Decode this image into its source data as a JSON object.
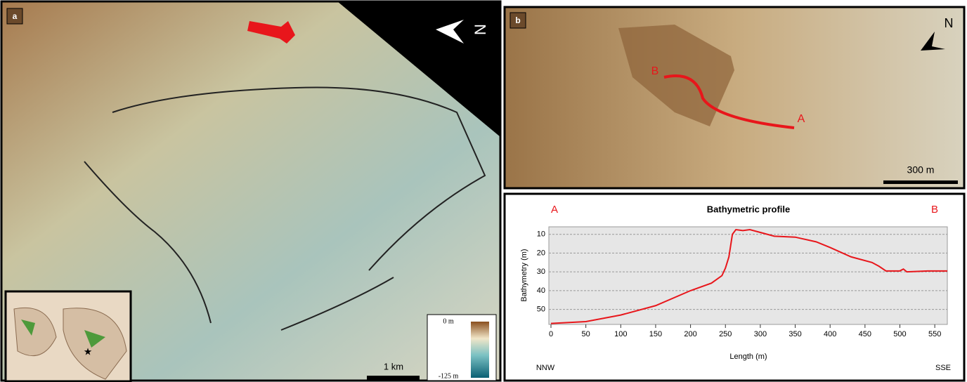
{
  "panels": {
    "a": {
      "label": "a",
      "north": "N",
      "scale": "1 km",
      "colorbar": {
        "top": "0 m",
        "bottom": "-125 m"
      }
    },
    "b": {
      "label": "b",
      "north": "N",
      "scale": "300 m",
      "profile_start": "A",
      "profile_end": "B"
    }
  },
  "chart_data": {
    "type": "line",
    "title": "Bathymetric profile",
    "start_label": "A",
    "end_label": "B",
    "xlabel": "Length (m)",
    "ylabel": "Bathymetry (m)",
    "left_note": "NNW",
    "right_note": "SSE",
    "x": [
      0,
      50,
      100,
      150,
      200,
      230,
      245,
      250,
      255,
      260,
      265,
      275,
      285,
      300,
      320,
      350,
      380,
      400,
      430,
      460,
      470,
      480,
      500,
      505,
      510,
      540,
      568
    ],
    "series": [
      {
        "name": "Bathymetric profile",
        "color": "#e8161b",
        "values": [
          57.5,
          56.5,
          53,
          48,
          40,
          36,
          32,
          28,
          22,
          10,
          7.5,
          8,
          7.5,
          9,
          11,
          11.5,
          14,
          17,
          22,
          25,
          27,
          29.5,
          29.5,
          28.5,
          30,
          29.5,
          29.5
        ]
      }
    ],
    "xlim": [
      0,
      570
    ],
    "ylim": [
      58,
      6
    ],
    "y_inverted": true,
    "xticks": [
      0,
      50,
      100,
      150,
      200,
      250,
      300,
      350,
      400,
      450,
      500,
      550
    ],
    "yticks": [
      10,
      20,
      30,
      40,
      50
    ],
    "grid": true
  }
}
